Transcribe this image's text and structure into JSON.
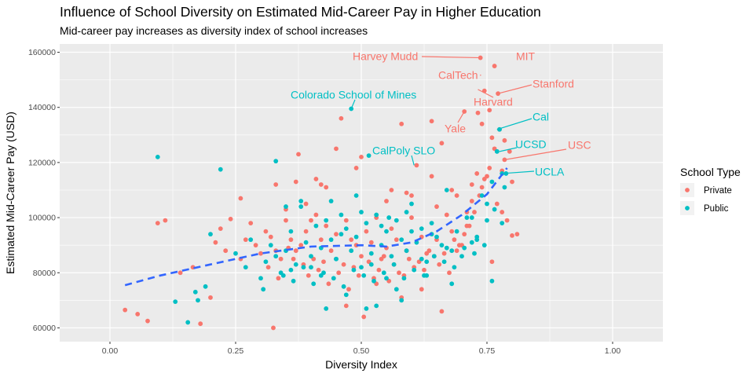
{
  "chart_data": {
    "type": "scatter",
    "title": "Influence of School Diversity on Estimated Mid-Career Pay in Higher Education",
    "subtitle": "Mid-career pay increases as diversity index of school increases",
    "xlabel": "Diversity Index",
    "ylabel": "Estimated Mid-Career Pay (USD)",
    "xlim": [
      -0.1,
      1.1
    ],
    "ylim": [
      55000,
      163000
    ],
    "x_ticks": [
      0.0,
      0.25,
      0.5,
      0.75,
      1.0
    ],
    "x_tick_labels": [
      "0.00",
      "0.25",
      "0.50",
      "0.75",
      "1.00"
    ],
    "y_ticks": [
      60000,
      80000,
      100000,
      120000,
      140000,
      160000
    ],
    "y_tick_labels": [
      "60000",
      "80000",
      "100000",
      "120000",
      "140000",
      "160000"
    ],
    "grid": true,
    "legend": {
      "title": "School Type",
      "position": "right",
      "entries": [
        {
          "label": "Private",
          "color": "#F8766D"
        },
        {
          "label": "Public",
          "color": "#00BFC4"
        }
      ]
    },
    "trend_line": {
      "style": "dashed",
      "color": "#3366FF",
      "x": [
        0.03,
        0.1,
        0.2,
        0.3,
        0.4,
        0.5,
        0.55,
        0.6,
        0.65,
        0.7,
        0.75,
        0.79
      ],
      "y": [
        75500,
        79000,
        83000,
        87000,
        89500,
        90000,
        89500,
        91000,
        95000,
        101000,
        108500,
        118000
      ]
    },
    "series": [
      {
        "name": "Private",
        "color": "#F8766D",
        "x": [
          0.03,
          0.055,
          0.075,
          0.095,
          0.11,
          0.14,
          0.165,
          0.18,
          0.2,
          0.21,
          0.22,
          0.23,
          0.24,
          0.26,
          0.27,
          0.28,
          0.29,
          0.3,
          0.31,
          0.32,
          0.325,
          0.33,
          0.34,
          0.35,
          0.36,
          0.37,
          0.375,
          0.38,
          0.39,
          0.4,
          0.405,
          0.41,
          0.42,
          0.43,
          0.44,
          0.45,
          0.46,
          0.47,
          0.48,
          0.49,
          0.5,
          0.505,
          0.51,
          0.52,
          0.53,
          0.54,
          0.55,
          0.56,
          0.57,
          0.58,
          0.59,
          0.6,
          0.61,
          0.62,
          0.63,
          0.64,
          0.65,
          0.66,
          0.67,
          0.68,
          0.69,
          0.7,
          0.71,
          0.72,
          0.73,
          0.74,
          0.75,
          0.76,
          0.77,
          0.78,
          0.79,
          0.8,
          0.81,
          0.315,
          0.335,
          0.355,
          0.365,
          0.385,
          0.395,
          0.415,
          0.425,
          0.435,
          0.455,
          0.465,
          0.475,
          0.485,
          0.495,
          0.515,
          0.525,
          0.535,
          0.545,
          0.555,
          0.565,
          0.575,
          0.585,
          0.595,
          0.605,
          0.615,
          0.625,
          0.635,
          0.645,
          0.655,
          0.665,
          0.675,
          0.685,
          0.695,
          0.705,
          0.715,
          0.725,
          0.735,
          0.745,
          0.755,
          0.765,
          0.775,
          0.785,
          0.795,
          0.47,
          0.53,
          0.58,
          0.62,
          0.66,
          0.69,
          0.71,
          0.745,
          0.755,
          0.732,
          0.765,
          0.772,
          0.705,
          0.737,
          0.785,
          0.65,
          0.59,
          0.56,
          0.42,
          0.41,
          0.39,
          0.26,
          0.37,
          0.49,
          0.45,
          0.33,
          0.35,
          0.5,
          0.43,
          0.55,
          0.6,
          0.64,
          0.68,
          0.72,
          0.74,
          0.76,
          0.78,
          0.8
        ],
        "y": [
          66500,
          65000,
          62500,
          98000,
          99000,
          80000,
          82000,
          61500,
          71000,
          91000,
          96000,
          88000,
          99500,
          85000,
          92000,
          98000,
          90000,
          87000,
          95000,
          93000,
          60000,
          88000,
          85000,
          99000,
          92000,
          88000,
          123000,
          90000,
          95000,
          99000,
          85000,
          101000,
          92000,
          97000,
          88000,
          94000,
          136000,
          99000,
          92000,
          90000,
          86000,
          64000,
          95000,
          91000,
          100000,
          85000,
          89000,
          96000,
          92000,
          134000,
          88000,
          100000,
          119000,
          93000,
          87000,
          135000,
          92000,
          127000,
          101000,
          95000,
          108000,
          90000,
          97000,
          112000,
          116000,
          111000,
          115000,
          84000,
          105000,
          102000,
          99000,
          113000,
          94000,
          82000,
          78000,
          89000,
          85000,
          83000,
          79000,
          81000,
          84000,
          76000,
          80000,
          83000,
          74000,
          82000,
          79000,
          84000,
          78000,
          81000,
          86000,
          77000,
          83000,
          80000,
          79000,
          85000,
          82000,
          84000,
          81000,
          88000,
          86000,
          83000,
          87000,
          80000,
          92000,
          90000,
          94000,
          97000,
          102000,
          108000,
          114000,
          118000,
          125000,
          132000,
          128000,
          124000,
          68000,
          76000,
          71000,
          74000,
          66000,
          88000,
          102000,
          146000,
          139000,
          138000,
          155000,
          145000,
          138500,
          158000,
          121000,
          104000,
          109000,
          110000,
          112000,
          114000,
          105000,
          107000,
          113000,
          118000,
          125000,
          112000,
          103000,
          122000,
          111000,
          106000,
          108000,
          115000,
          110000,
          106000,
          134000,
          129000,
          117000,
          93500
        ]
      },
      {
        "name": "Public",
        "color": "#00BFC4",
        "x": [
          0.095,
          0.13,
          0.155,
          0.17,
          0.175,
          0.19,
          0.2,
          0.22,
          0.25,
          0.27,
          0.28,
          0.3,
          0.31,
          0.32,
          0.33,
          0.34,
          0.35,
          0.36,
          0.37,
          0.38,
          0.39,
          0.4,
          0.41,
          0.42,
          0.43,
          0.44,
          0.45,
          0.46,
          0.47,
          0.48,
          0.49,
          0.5,
          0.51,
          0.52,
          0.53,
          0.54,
          0.55,
          0.56,
          0.57,
          0.58,
          0.59,
          0.6,
          0.61,
          0.62,
          0.63,
          0.64,
          0.65,
          0.66,
          0.67,
          0.68,
          0.69,
          0.7,
          0.71,
          0.72,
          0.73,
          0.74,
          0.75,
          0.76,
          0.77,
          0.78,
          0.305,
          0.345,
          0.365,
          0.385,
          0.405,
          0.425,
          0.445,
          0.465,
          0.485,
          0.505,
          0.525,
          0.545,
          0.565,
          0.585,
          0.605,
          0.625,
          0.645,
          0.665,
          0.685,
          0.705,
          0.725,
          0.745,
          0.765,
          0.785,
          0.48,
          0.515,
          0.555,
          0.76,
          0.775,
          0.77,
          0.788,
          0.78,
          0.33,
          0.36,
          0.42,
          0.47,
          0.52,
          0.57,
          0.62,
          0.67,
          0.72,
          0.44,
          0.49,
          0.54,
          0.59,
          0.64,
          0.4,
          0.45,
          0.5,
          0.55,
          0.6,
          0.35,
          0.38,
          0.43,
          0.53,
          0.58,
          0.63,
          0.68,
          0.73,
          0.75,
          0.46,
          0.51
        ],
        "y": [
          122000,
          69500,
          62000,
          73000,
          70000,
          75000,
          94000,
          117500,
          87000,
          82000,
          92000,
          78000,
          84000,
          90000,
          120500,
          80000,
          88000,
          95000,
          83000,
          104000,
          91000,
          86000,
          97000,
          79000,
          99000,
          92000,
          85000,
          101000,
          96000,
          88000,
          93000,
          82000,
          98000,
          87000,
          101000,
          90000,
          95000,
          86000,
          99000,
          92000,
          88000,
          105000,
          91000,
          96000,
          84000,
          98000,
          93000,
          90000,
          110000,
          88000,
          95000,
          86000,
          100000,
          91000,
          93000,
          108000,
          99000,
          77000,
          124000,
          98000,
          74000,
          79000,
          77000,
          82000,
          76000,
          80000,
          78000,
          75000,
          81000,
          79000,
          77000,
          80000,
          83000,
          78000,
          81000,
          79000,
          86000,
          84000,
          82000,
          89000,
          87000,
          90000,
          103000,
          111000,
          139500,
          122500,
          100000,
          113000,
          132000,
          124000,
          116000,
          116000,
          86000,
          81000,
          89000,
          72000,
          83000,
          74000,
          85000,
          89000,
          100000,
          106000,
          108000,
          97000,
          102000,
          94000,
          82000,
          85000,
          102000,
          78000,
          95000,
          104000,
          106000,
          67000,
          68000,
          70000,
          79000,
          76000,
          92000,
          105000,
          94000,
          67000
        ]
      }
    ],
    "annotations": [
      {
        "label": "Harvey Mudd",
        "x": 0.74,
        "y": 158000,
        "color": "#F8766D"
      },
      {
        "label": "MIT",
        "x": 0.765,
        "y": 155000,
        "color": "#F8766D"
      },
      {
        "label": "CalTech",
        "x": 0.737,
        "y": 151500,
        "color": "#F8766D"
      },
      {
        "label": "Stanford",
        "x": 0.772,
        "y": 145000,
        "color": "#F8766D"
      },
      {
        "label": "Harvard",
        "x": 0.732,
        "y": 146500,
        "color": "#F8766D"
      },
      {
        "label": "Colorado School of Mines",
        "x": 0.48,
        "y": 139500,
        "color": "#00BFC4"
      },
      {
        "label": "Cal",
        "x": 0.77,
        "y": 132000,
        "color": "#00BFC4"
      },
      {
        "label": "Yale",
        "x": 0.705,
        "y": 138500,
        "color": "#F8766D"
      },
      {
        "label": "UCSD",
        "x": 0.775,
        "y": 124000,
        "color": "#00BFC4"
      },
      {
        "label": "USC",
        "x": 0.785,
        "y": 121000,
        "color": "#F8766D"
      },
      {
        "label": "CalPoly SLO",
        "x": 0.605,
        "y": 119000,
        "color": "#00BFC4"
      },
      {
        "label": "UCLA",
        "x": 0.78,
        "y": 116000,
        "color": "#00BFC4"
      }
    ]
  }
}
